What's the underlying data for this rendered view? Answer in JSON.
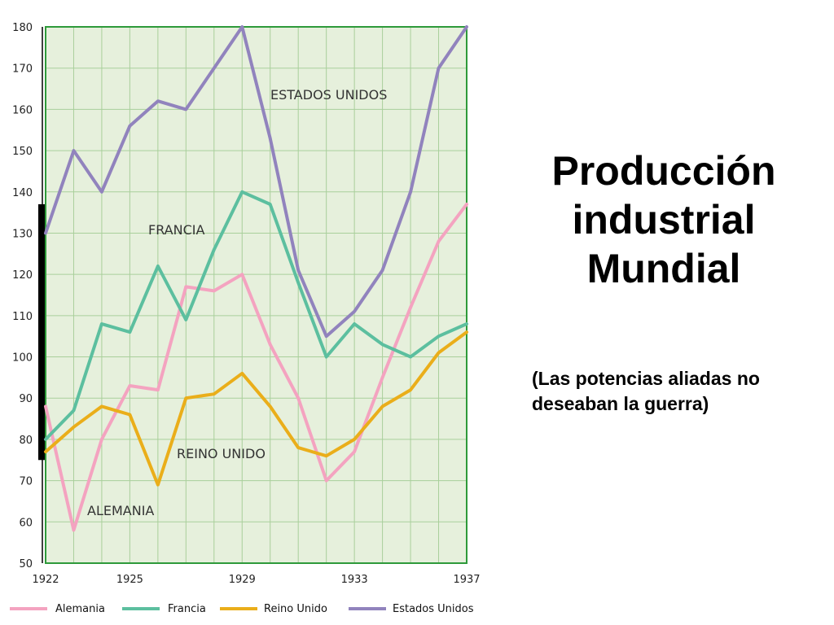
{
  "title": "Producción industrial Mundial",
  "subtitle": "(Las potencias aliadas no deseaban la guerra)",
  "chart_data": {
    "type": "line",
    "x": [
      1922,
      1923,
      1924,
      1925,
      1926,
      1927,
      1928,
      1929,
      1930,
      1931,
      1932,
      1933,
      1934,
      1935,
      1936,
      1937
    ],
    "x_tick_labels": [
      "1922",
      "1925",
      "1929",
      "1933",
      "1937"
    ],
    "x_tick_values": [
      1922,
      1925,
      1929,
      1933,
      1937
    ],
    "y_tick_labels": [
      "50",
      "60",
      "70",
      "80",
      "90",
      "100",
      "110",
      "120",
      "130",
      "140",
      "150",
      "160",
      "170",
      "180"
    ],
    "ylim": [
      50,
      180
    ],
    "xlim": [
      1922,
      1937
    ],
    "grid": true,
    "background_color": "#e6f0dc",
    "grid_color": "#a9cf9b",
    "border_color": "#2e9a3a",
    "legend_position": "bottom",
    "series": [
      {
        "name": "Alemania",
        "label": "ALEMANIA",
        "color": "#f4a3c0",
        "values": [
          88,
          58,
          80,
          93,
          92,
          117,
          116,
          120,
          103,
          90,
          70,
          77,
          95,
          112,
          128,
          137
        ]
      },
      {
        "name": "Francia",
        "label": "FRANCIA",
        "color": "#5cbf9f",
        "values": [
          80,
          87,
          108,
          106,
          122,
          109,
          126,
          140,
          137,
          118,
          100,
          108,
          103,
          100,
          105,
          108
        ]
      },
      {
        "name": "Reino Unido",
        "label": "REINO UNIDO",
        "color": "#eaae1a",
        "values": [
          77,
          83,
          88,
          86,
          69,
          90,
          91,
          96,
          88,
          78,
          76,
          80,
          88,
          92,
          101,
          106
        ]
      },
      {
        "name": "Estados Unidos",
        "label": "ESTADOS UNIDOS",
        "color": "#9183bd",
        "values": [
          130,
          150,
          140,
          156,
          162,
          160,
          170,
          180,
          153,
          121,
          105,
          111,
          121,
          140,
          170,
          180
        ]
      }
    ]
  }
}
